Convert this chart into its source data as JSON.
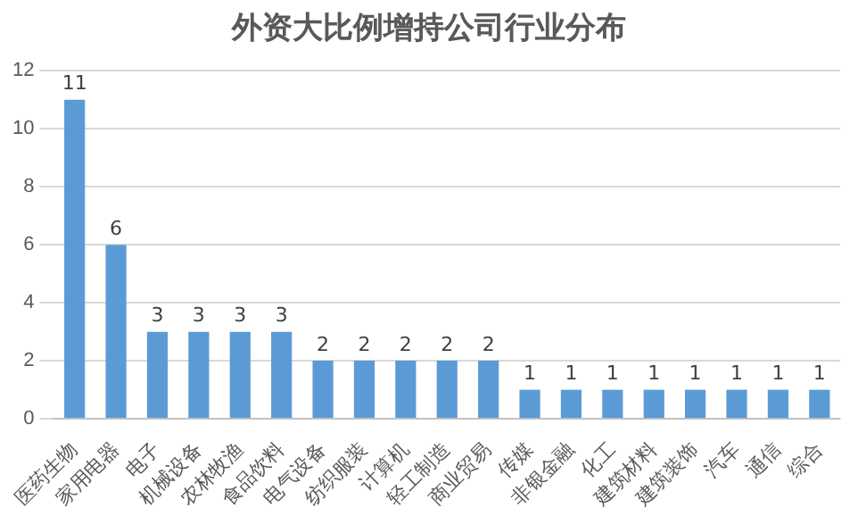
{
  "chart_data": {
    "type": "bar",
    "title": "外资大比例增持公司行业分布",
    "categories": [
      "医药生物",
      "家用电器",
      "电子",
      "机械设备",
      "农林牧渔",
      "食品饮料",
      "电气设备",
      "纺织服装",
      "计算机",
      "轻工制造",
      "商业贸易",
      "传媒",
      "非银金融",
      "化工",
      "建筑材料",
      "建筑装饰",
      "汽车",
      "通信",
      "综合"
    ],
    "values": [
      11,
      6,
      3,
      3,
      3,
      3,
      2,
      2,
      2,
      2,
      2,
      1,
      1,
      1,
      1,
      1,
      1,
      1,
      1
    ],
    "color": "#5b9bd5",
    "ylim": [
      0,
      12
    ],
    "yticks": [
      0,
      2,
      4,
      6,
      8,
      10,
      12
    ],
    "grid": "y",
    "data_labels": true
  }
}
